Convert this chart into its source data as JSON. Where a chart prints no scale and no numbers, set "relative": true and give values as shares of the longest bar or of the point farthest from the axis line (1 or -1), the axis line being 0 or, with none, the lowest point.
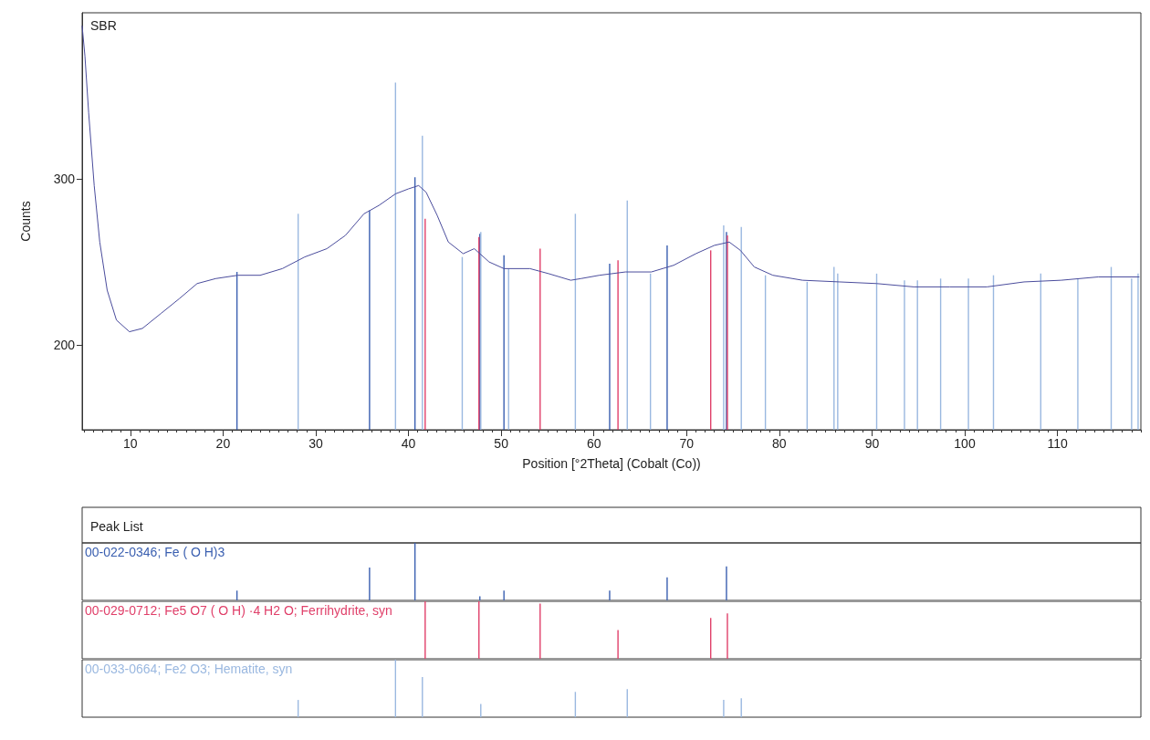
{
  "chart_data": [
    {
      "type": "line",
      "title": "SBR",
      "xlabel": "Position [°2Theta] (Cobalt (Co))",
      "ylabel": "Counts",
      "xlim": [
        4.8,
        119
      ],
      "xticks": [
        10,
        20,
        30,
        40,
        50,
        60,
        70,
        80,
        90,
        100,
        110
      ],
      "ylim": [
        149,
        400
      ],
      "yticks": [
        200,
        300
      ],
      "grid": false,
      "legend": false,
      "marker": "none",
      "line_style": "solid",
      "series": [
        {
          "color": "#4a4c9c",
          "x": [
            4.8,
            5.1,
            5.5,
            6.1,
            6.7,
            7.5,
            8.5,
            9.9,
            11.3,
            13.3,
            15.3,
            17.2,
            19.2,
            21.6,
            24.0,
            26.4,
            28.8,
            31.2,
            33.2,
            35.2,
            36.8,
            38.6,
            40.0,
            41.1,
            41.9,
            43.1,
            44.3,
            45.9,
            47.1,
            48.7,
            50.3,
            53.1,
            55.1,
            57.5,
            58.6,
            60.6,
            63.4,
            66.2,
            68.6,
            71.0,
            73.0,
            74.6,
            75.8,
            77.3,
            79.3,
            82.5,
            86.5,
            90.5,
            94.5,
            98.4,
            102.4,
            106.4,
            110.4,
            114.4,
            118.8
          ],
          "values": [
            392,
            374,
            340,
            296,
            262,
            233,
            215,
            208,
            210,
            219,
            228,
            237,
            240,
            242,
            242,
            246,
            253,
            258,
            266,
            279,
            284,
            291,
            294,
            296,
            292,
            278,
            262,
            255,
            258,
            250,
            246,
            246,
            243,
            239,
            240,
            242,
            244,
            244,
            248,
            255,
            260,
            262,
            257,
            247,
            242,
            239,
            238,
            237,
            235,
            235,
            235,
            238,
            239,
            241,
            241
          ]
        },
        {
          "type": "bar",
          "color": "#3a5fb0",
          "x": [
            21.5,
            35.8,
            40.7,
            47.7,
            50.3,
            61.7,
            67.9,
            74.3
          ],
          "values": [
            244,
            281,
            301,
            267,
            254,
            249,
            260,
            268
          ]
        },
        {
          "type": "bar",
          "color": "#e0406a",
          "x": [
            41.8,
            47.6,
            54.2,
            62.6,
            72.6,
            74.4
          ],
          "values": [
            276,
            265,
            258,
            251,
            257,
            266
          ]
        },
        {
          "type": "bar",
          "color": "#9ab8e0",
          "x": [
            28.1,
            38.6,
            41.5,
            45.8,
            47.8,
            50.8,
            58.0,
            63.6,
            66.1,
            74.0,
            75.9,
            78.5,
            83.0,
            85.9,
            86.3,
            90.5,
            93.5,
            94.9,
            97.4,
            100.4,
            103.1,
            108.2,
            112.2,
            115.8,
            118.0,
            118.7
          ],
          "values": [
            279,
            358,
            326,
            253,
            268,
            246,
            279,
            287,
            243,
            272,
            271,
            242,
            238,
            247,
            243,
            243,
            239,
            239,
            240,
            240,
            242,
            243,
            240,
            247,
            240,
            243
          ]
        }
      ]
    },
    {
      "type": "bar",
      "title": "Peak List",
      "relative": true,
      "xlim": [
        4.8,
        119
      ],
      "tick_labels": false,
      "legend": "top left",
      "series": [
        {
          "name": "00-022-0346; Fe ( O H)3",
          "color": "#3a5fb0",
          "x": [
            21.5,
            35.8,
            40.7,
            47.7,
            50.3,
            61.7,
            67.9,
            74.3
          ],
          "values": [
            0.17,
            0.57,
            1,
            0.07,
            0.17,
            0.17,
            0.4,
            0.59
          ]
        }
      ]
    },
    {
      "type": "bar",
      "relative": true,
      "xlim": [
        4.8,
        119
      ],
      "tick_labels": false,
      "legend": "top left",
      "series": [
        {
          "name": "00-029-0712; Fe5 O7 ( O H) ·4 H2 O; Ferrihydrite, syn",
          "color": "#e0406a",
          "x": [
            41.8,
            47.6,
            54.2,
            62.6,
            72.6,
            74.4
          ],
          "values": [
            1,
            1,
            0.96,
            0.5,
            0.71,
            0.79
          ]
        }
      ]
    },
    {
      "type": "bar",
      "relative": true,
      "xlim": [
        4.8,
        119
      ],
      "tick_labels": false,
      "legend": "top left",
      "series": [
        {
          "name": "00-033-0664; Fe2 O3; Hematite, syn",
          "color": "#9ab8e0",
          "x": [
            28.1,
            38.6,
            41.5,
            47.8,
            58.0,
            63.6,
            74.0,
            75.9
          ],
          "values": [
            0.3,
            1,
            0.7,
            0.23,
            0.44,
            0.49,
            0.3,
            0.33
          ]
        }
      ]
    }
  ]
}
